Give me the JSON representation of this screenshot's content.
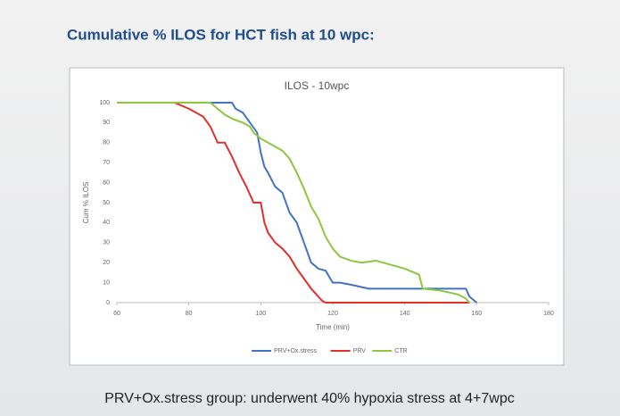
{
  "chart_data": {
    "type": "line",
    "heading": "Cumulative % ILOS for HCT fish at 10 wpc:",
    "title": "ILOS - 10wpc",
    "xlabel": "Time (min)",
    "ylabel": "Cum % ILOS",
    "footer": "PRV+Ox.stress group: underwent 40% hypoxia stress at 4+7wpc",
    "xlim": [
      60,
      180
    ],
    "xticks": [
      60,
      80,
      100,
      120,
      140,
      160,
      180
    ],
    "ylim": [
      0,
      100
    ],
    "yticks": [
      0,
      10,
      20,
      30,
      40,
      50,
      60,
      70,
      80,
      90,
      100
    ],
    "grid": false,
    "legend": "bottom",
    "series": [
      {
        "name": "PRV+Ox.stress",
        "color": "#4472c4",
        "x": [
          60,
          92,
          93,
          95,
          97,
          99,
          100,
          101,
          102,
          104,
          106,
          107,
          108,
          110,
          111,
          112,
          113,
          114,
          116,
          118,
          119,
          120,
          122,
          125,
          130,
          150,
          157,
          158,
          160
        ],
        "values": [
          100,
          100,
          97,
          95,
          90,
          85,
          75,
          68,
          65,
          58,
          55,
          50,
          45,
          40,
          35,
          30,
          25,
          20,
          17,
          16,
          13,
          10,
          10,
          9,
          7,
          7,
          7,
          3,
          0
        ]
      },
      {
        "name": "PRV",
        "color": "#e0302a",
        "x": [
          60,
          76,
          80,
          84,
          86,
          88,
          90,
          92,
          94,
          96,
          98,
          100,
          101,
          102,
          104,
          106,
          108,
          110,
          112,
          114,
          116,
          117,
          118,
          158
        ],
        "values": [
          100,
          100,
          97,
          93,
          88,
          80,
          80,
          73,
          65,
          58,
          50,
          50,
          40,
          35,
          30,
          27,
          23,
          17,
          12,
          7,
          3,
          1,
          0,
          0
        ]
      },
      {
        "name": "CTR",
        "color": "#8dc63f",
        "x": [
          60,
          86,
          88,
          90,
          92,
          95,
          97,
          98,
          100,
          102,
          104,
          106,
          108,
          110,
          112,
          114,
          116,
          118,
          120,
          122,
          125,
          128,
          132,
          136,
          140,
          144,
          145,
          150,
          155,
          157,
          158
        ],
        "values": [
          100,
          100,
          97,
          94,
          92,
          90,
          88,
          85,
          82,
          80,
          78,
          76,
          72,
          65,
          57,
          48,
          42,
          33,
          27,
          23,
          21,
          20,
          21,
          19,
          17,
          14,
          7,
          6,
          4,
          2,
          0
        ]
      }
    ]
  }
}
